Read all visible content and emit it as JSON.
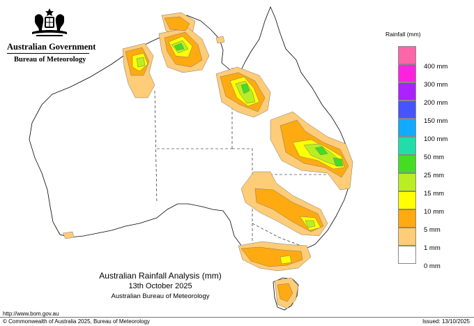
{
  "header": {
    "government": "Australian Government",
    "agency": "Bureau of Meteorology"
  },
  "legend": {
    "title": "Rainfall (mm)",
    "items": [
      {
        "label": "400 mm",
        "color": "#ff66aa"
      },
      {
        "label": "300 mm",
        "color": "#ff22dd"
      },
      {
        "label": "200 mm",
        "color": "#aa22ff"
      },
      {
        "label": "150 mm",
        "color": "#4455ff"
      },
      {
        "label": "100 mm",
        "color": "#11aaff"
      },
      {
        "label": "50 mm",
        "color": "#22ddaa"
      },
      {
        "label": "25 mm",
        "color": "#44dd22"
      },
      {
        "label": "15 mm",
        "color": "#bbee22"
      },
      {
        "label": "10 mm",
        "color": "#ffff00"
      },
      {
        "label": "5 mm",
        "color": "#ffaa11"
      },
      {
        "label": "1 mm",
        "color": "#ffcc77"
      },
      {
        "label": "0 mm",
        "color": "#ffffff"
      }
    ]
  },
  "title": {
    "line1": "Australian Rainfall Analysis (mm)",
    "line2": "13th October 2025",
    "line3": "Australian Bureau of Meteorology"
  },
  "footer": {
    "url": "http://www.bom.gov.au",
    "copyright": "© Commonwealth of Australia 2025, Bureau of Meteorology",
    "issued": "Issued: 13/10/2025"
  }
}
